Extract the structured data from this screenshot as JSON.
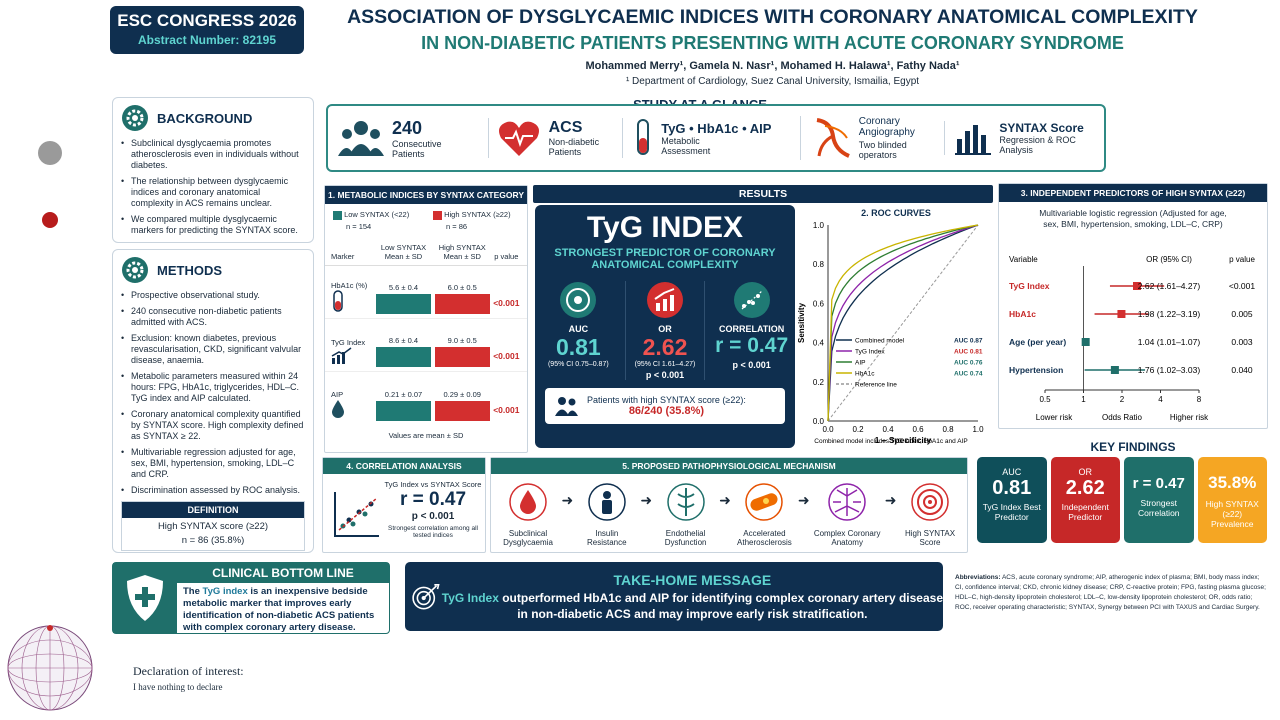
{
  "congress": {
    "name": "ESC CONGRESS 2026",
    "abstract": "Abstract Number: 82195"
  },
  "title": {
    "line1": "ASSOCIATION OF DYSGLYCAEMIC INDICES WITH CORONARY ANATOMICAL COMPLEXITY",
    "line2": "IN NON-DIABETIC PATIENTS PRESENTING WITH ACUTE CORONARY SYNDROME",
    "authors": "Mohammed Merry¹, Gamela N. Nasr¹, Mohamed H. Halawa¹, Fathy Nada¹",
    "affil": "¹ Department of Cardiology, Suez Canal University, Ismailia, Egypt"
  },
  "background": {
    "title": "BACKGROUND",
    "items": [
      "Subclinical dysglycaemia promotes atherosclerosis even in individuals without diabetes.",
      "The relationship between dysglycaemic indices and coronary anatomical complexity in ACS remains unclear.",
      "We compared multiple dysglycaemic markers for predicting the SYNTAX score."
    ]
  },
  "methods": {
    "title": "METHODS",
    "items": [
      "Prospective observational study.",
      "240 consecutive non-diabetic patients admitted with ACS.",
      "Exclusion: known diabetes, previous revascularisation, CKD, significant valvular disease, anaemia.",
      "Metabolic parameters measured within 24 hours: FPG, HbA1c, triglycerides, HDL–C. TyG index and AIP calculated.",
      "Coronary anatomical complexity quantified by SYNTAX score. High complexity defined as SYNTAX ≥ 22.",
      "Multivariable regression adjusted for age, sex, BMI, hypertension, smoking, LDL–C and CRP.",
      "Discrimination assessed by ROC analysis."
    ]
  },
  "definition": {
    "title": "DEFINITION",
    "line1": "High SYNTAX score (≥22)",
    "line2": "n = 86 (35.8%)"
  },
  "glance": {
    "title": "STUDY AT A GLANCE",
    "items": [
      {
        "big": "240",
        "sub": "Consecutive Patients"
      },
      {
        "big": "ACS",
        "sub": "Non-diabetic Patients"
      },
      {
        "big": "TyG • HbA1c • AIP",
        "sub": "Metabolic Assessment"
      },
      {
        "big": "Coronary Angiography",
        "sub": "Two blinded operators"
      },
      {
        "big": "SYNTAX Score",
        "sub": "Regression & ROC Analysis"
      }
    ]
  },
  "metabolic": {
    "title": "1. METABOLIC INDICES BY SYNTAX CATEGORY",
    "low_label": "Low SYNTAX (<22)",
    "low_n": "n = 154",
    "high_label": "High SYNTAX (≥22)",
    "high_n": "n = 86",
    "col_marker": "Marker",
    "col_low": "Low SYNTAX Mean ± SD",
    "col_high": "High SYNTAX Mean ± SD",
    "col_p": "p value",
    "rows": [
      {
        "marker": "HbA1c (%)",
        "low": "5.6 ± 0.4",
        "high": "6.0 ± 0.5",
        "p": "<0.001"
      },
      {
        "marker": "TyG Index",
        "low": "8.6 ± 0.4",
        "high": "9.0 ± 0.5",
        "p": "<0.001"
      },
      {
        "marker": "AIP",
        "low": "0.21 ± 0.07",
        "high": "0.29 ± 0.09",
        "p": "<0.001"
      }
    ],
    "foot": "Values are mean ± SD"
  },
  "results": {
    "title": "RESULTS",
    "headline": "TyG INDEX",
    "sub": "STRONGEST PREDICTOR OF CORONARY ANATOMICAL COMPLEXITY",
    "stats": [
      {
        "label": "AUC",
        "value": "0.81",
        "ci": "(95% CI 0.75–0.87)",
        "p": ""
      },
      {
        "label": "OR",
        "value": "2.62",
        "ci": "(95% CI 1.61–4.27)",
        "p": "p < 0.001"
      },
      {
        "label": "CORRELATION",
        "value": "r = 0.47",
        "ci": "",
        "p": "p < 0.001"
      }
    ],
    "box_line1": "Patients with high SYNTAX score (≥22):",
    "box_line2": "86/240 (35.8%)"
  },
  "roc": {
    "title": "2. ROC CURVES",
    "xlabel": "1 – Specificity",
    "ylabel": "Sensitivity",
    "legend": [
      {
        "name": "Combined model",
        "auc": "AUC 0.87",
        "color": "#0f2f4f"
      },
      {
        "name": "TyG Index",
        "auc": "AUC 0.81",
        "color": "#8e24aa"
      },
      {
        "name": "AIP",
        "auc": "AUC 0.76",
        "color": "#2e7d32"
      },
      {
        "name": "HbA1c",
        "auc": "AUC 0.74",
        "color": "#c9b400"
      },
      {
        "name": "Reference line",
        "auc": "",
        "color": "#999999"
      }
    ],
    "foot": "Combined model includes TyG index, HbA1c and AIP",
    "ticks": [
      "0.0",
      "0.2",
      "0.4",
      "0.6",
      "0.8",
      "1.0"
    ]
  },
  "predictors": {
    "title": "3. INDEPENDENT PREDICTORS OF HIGH SYNTAX (≥22)",
    "sub": "Multivariable logistic regression (Adjusted for age, sex, BMI, hypertension, smoking, LDL–C, CRP)",
    "col_var": "Variable",
    "col_or": "OR (95% CI)",
    "col_p": "p value",
    "rows": [
      {
        "name": "TyG Index",
        "or": "2.62 (1.61–4.27)",
        "p": "<0.001",
        "est": 2.62,
        "lo": 1.61,
        "hi": 4.27
      },
      {
        "name": "HbA1c",
        "or": "1.98 (1.22–3.19)",
        "p": "0.005",
        "est": 1.98,
        "lo": 1.22,
        "hi": 3.19
      },
      {
        "name": "Age (per year)",
        "or": "1.04 (1.01–1.07)",
        "p": "0.003",
        "est": 1.04,
        "lo": 1.01,
        "hi": 1.07
      },
      {
        "name": "Hypertension",
        "or": "1.76 (1.02–3.03)",
        "p": "0.040",
        "est": 1.76,
        "lo": 1.02,
        "hi": 3.03
      }
    ],
    "axis": [
      "0.5",
      "1",
      "2",
      "4",
      "8"
    ],
    "lower": "Lower risk",
    "mid": "Odds Ratio",
    "higher": "Higher risk"
  },
  "correlation": {
    "title": "4. CORRELATION ANALYSIS",
    "label": "TyG Index vs SYNTAX Score",
    "r": "r = 0.47",
    "p": "p < 0.001",
    "foot": "Strongest correlation among all tested indices"
  },
  "mechanism": {
    "title": "5. PROPOSED PATHOPHYSIOLOGICAL MECHANISM",
    "steps": [
      "Subclinical Dysglycaemia",
      "Insulin Resistance",
      "Endothelial Dysfunction",
      "Accelerated Atherosclerosis",
      "Complex Coronary Anatomy",
      "High SYNTAX Score"
    ]
  },
  "findings": {
    "title": "KEY FINDINGS",
    "cards": [
      {
        "top": "AUC",
        "big": "0.81",
        "sub": "TyG Index Best Predictor",
        "color": "#0f4f5a"
      },
      {
        "top": "OR",
        "big": "2.62",
        "sub": "Independent Predictor",
        "color": "#c62828"
      },
      {
        "top": "",
        "big": "r = 0.47",
        "sub": "Strongest Correlation",
        "color": "#1f6f6a"
      },
      {
        "top": "",
        "big": "35.8%",
        "sub": "High SYNTAX (≥22) Prevalence",
        "color": "#f5a623"
      }
    ]
  },
  "bottomline": {
    "title": "CLINICAL BOTTOM LINE",
    "pre": "The ",
    "hl": "TyG index",
    "post": " is an inexpensive bedside metabolic marker that improves early identification of non-diabetic ACS patients with complex coronary artery disease."
  },
  "takehome": {
    "title": "TAKE-HOME MESSAGE",
    "hl": "TyG Index",
    "line1": " outperformed HbA1c and AIP for identifying complex coronary artery disease",
    "line2": "in non-diabetic ACS and may improve early risk stratification."
  },
  "abbrev": {
    "label": "Abbreviations:",
    "text": "ACS, acute coronary syndrome; AIP, atherogenic index of plasma; BMI, body mass index; CI, confidence interval; CKD, chronic kidney disease; CRP, C-reactive protein; FPG, fasting plasma glucose; HDL–C, high-density lipoprotein cholesterol; LDL–C, low-density lipoprotein cholesterol; OR, odds ratio; ROC, receiver operating characteristic; SYNTAX, Synergy between PCI with TAXUS and Cardiac Surgery."
  },
  "declaration": {
    "title": "Declaration of interest:",
    "text": "I have nothing to declare"
  }
}
